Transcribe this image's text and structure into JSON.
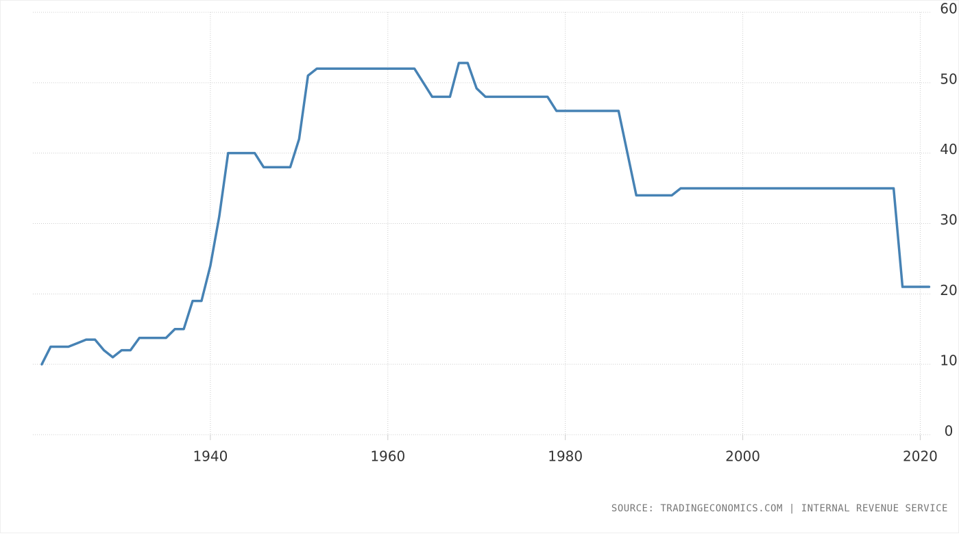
{
  "chart_data": {
    "type": "line",
    "source": "SOURCE: TRADINGECONOMICS.COM | INTERNAL REVENUE SERVICE",
    "x": [
      1921,
      1922,
      1923,
      1924,
      1925,
      1926,
      1927,
      1928,
      1929,
      1930,
      1931,
      1932,
      1933,
      1934,
      1935,
      1936,
      1937,
      1938,
      1939,
      1940,
      1941,
      1942,
      1943,
      1944,
      1945,
      1946,
      1947,
      1948,
      1949,
      1950,
      1951,
      1952,
      1953,
      1954,
      1955,
      1956,
      1957,
      1958,
      1959,
      1960,
      1961,
      1962,
      1963,
      1964,
      1965,
      1966,
      1967,
      1968,
      1969,
      1970,
      1971,
      1972,
      1973,
      1974,
      1975,
      1976,
      1977,
      1978,
      1979,
      1980,
      1981,
      1982,
      1983,
      1984,
      1985,
      1986,
      1987,
      1988,
      1989,
      1990,
      1991,
      1992,
      1993,
      1994,
      1995,
      1996,
      1997,
      1998,
      1999,
      2000,
      2001,
      2002,
      2003,
      2004,
      2005,
      2006,
      2007,
      2008,
      2009,
      2010,
      2011,
      2012,
      2013,
      2014,
      2015,
      2016,
      2017,
      2018,
      2019,
      2020,
      2021
    ],
    "series": [
      {
        "color": "#4682b4",
        "values": [
          10,
          12.5,
          12.5,
          12.5,
          13,
          13.5,
          13.5,
          12,
          11,
          12,
          12,
          13.75,
          13.75,
          13.75,
          13.75,
          15,
          15,
          19,
          19,
          24,
          31,
          40,
          40,
          40,
          40,
          38,
          38,
          38,
          38,
          42,
          51,
          52,
          52,
          52,
          52,
          52,
          52,
          52,
          52,
          52,
          52,
          52,
          52,
          50,
          48,
          48,
          48,
          52.8,
          52.8,
          49.2,
          48,
          48,
          48,
          48,
          48,
          48,
          48,
          48,
          46,
          46,
          46,
          46,
          46,
          46,
          46,
          46,
          40,
          34,
          34,
          34,
          34,
          34,
          35,
          35,
          35,
          35,
          35,
          35,
          35,
          35,
          35,
          35,
          35,
          35,
          35,
          35,
          35,
          35,
          35,
          35,
          35,
          35,
          35,
          35,
          35,
          35,
          35,
          21,
          21,
          21,
          21
        ]
      }
    ],
    "xlim": [
      1920,
      2021.2
    ],
    "xticks": [
      1940,
      1960,
      1980,
      2000,
      2020
    ],
    "ylim": [
      0,
      60
    ],
    "yticks": [
      0,
      10,
      20,
      30,
      40,
      50,
      60
    ],
    "grid": true
  }
}
